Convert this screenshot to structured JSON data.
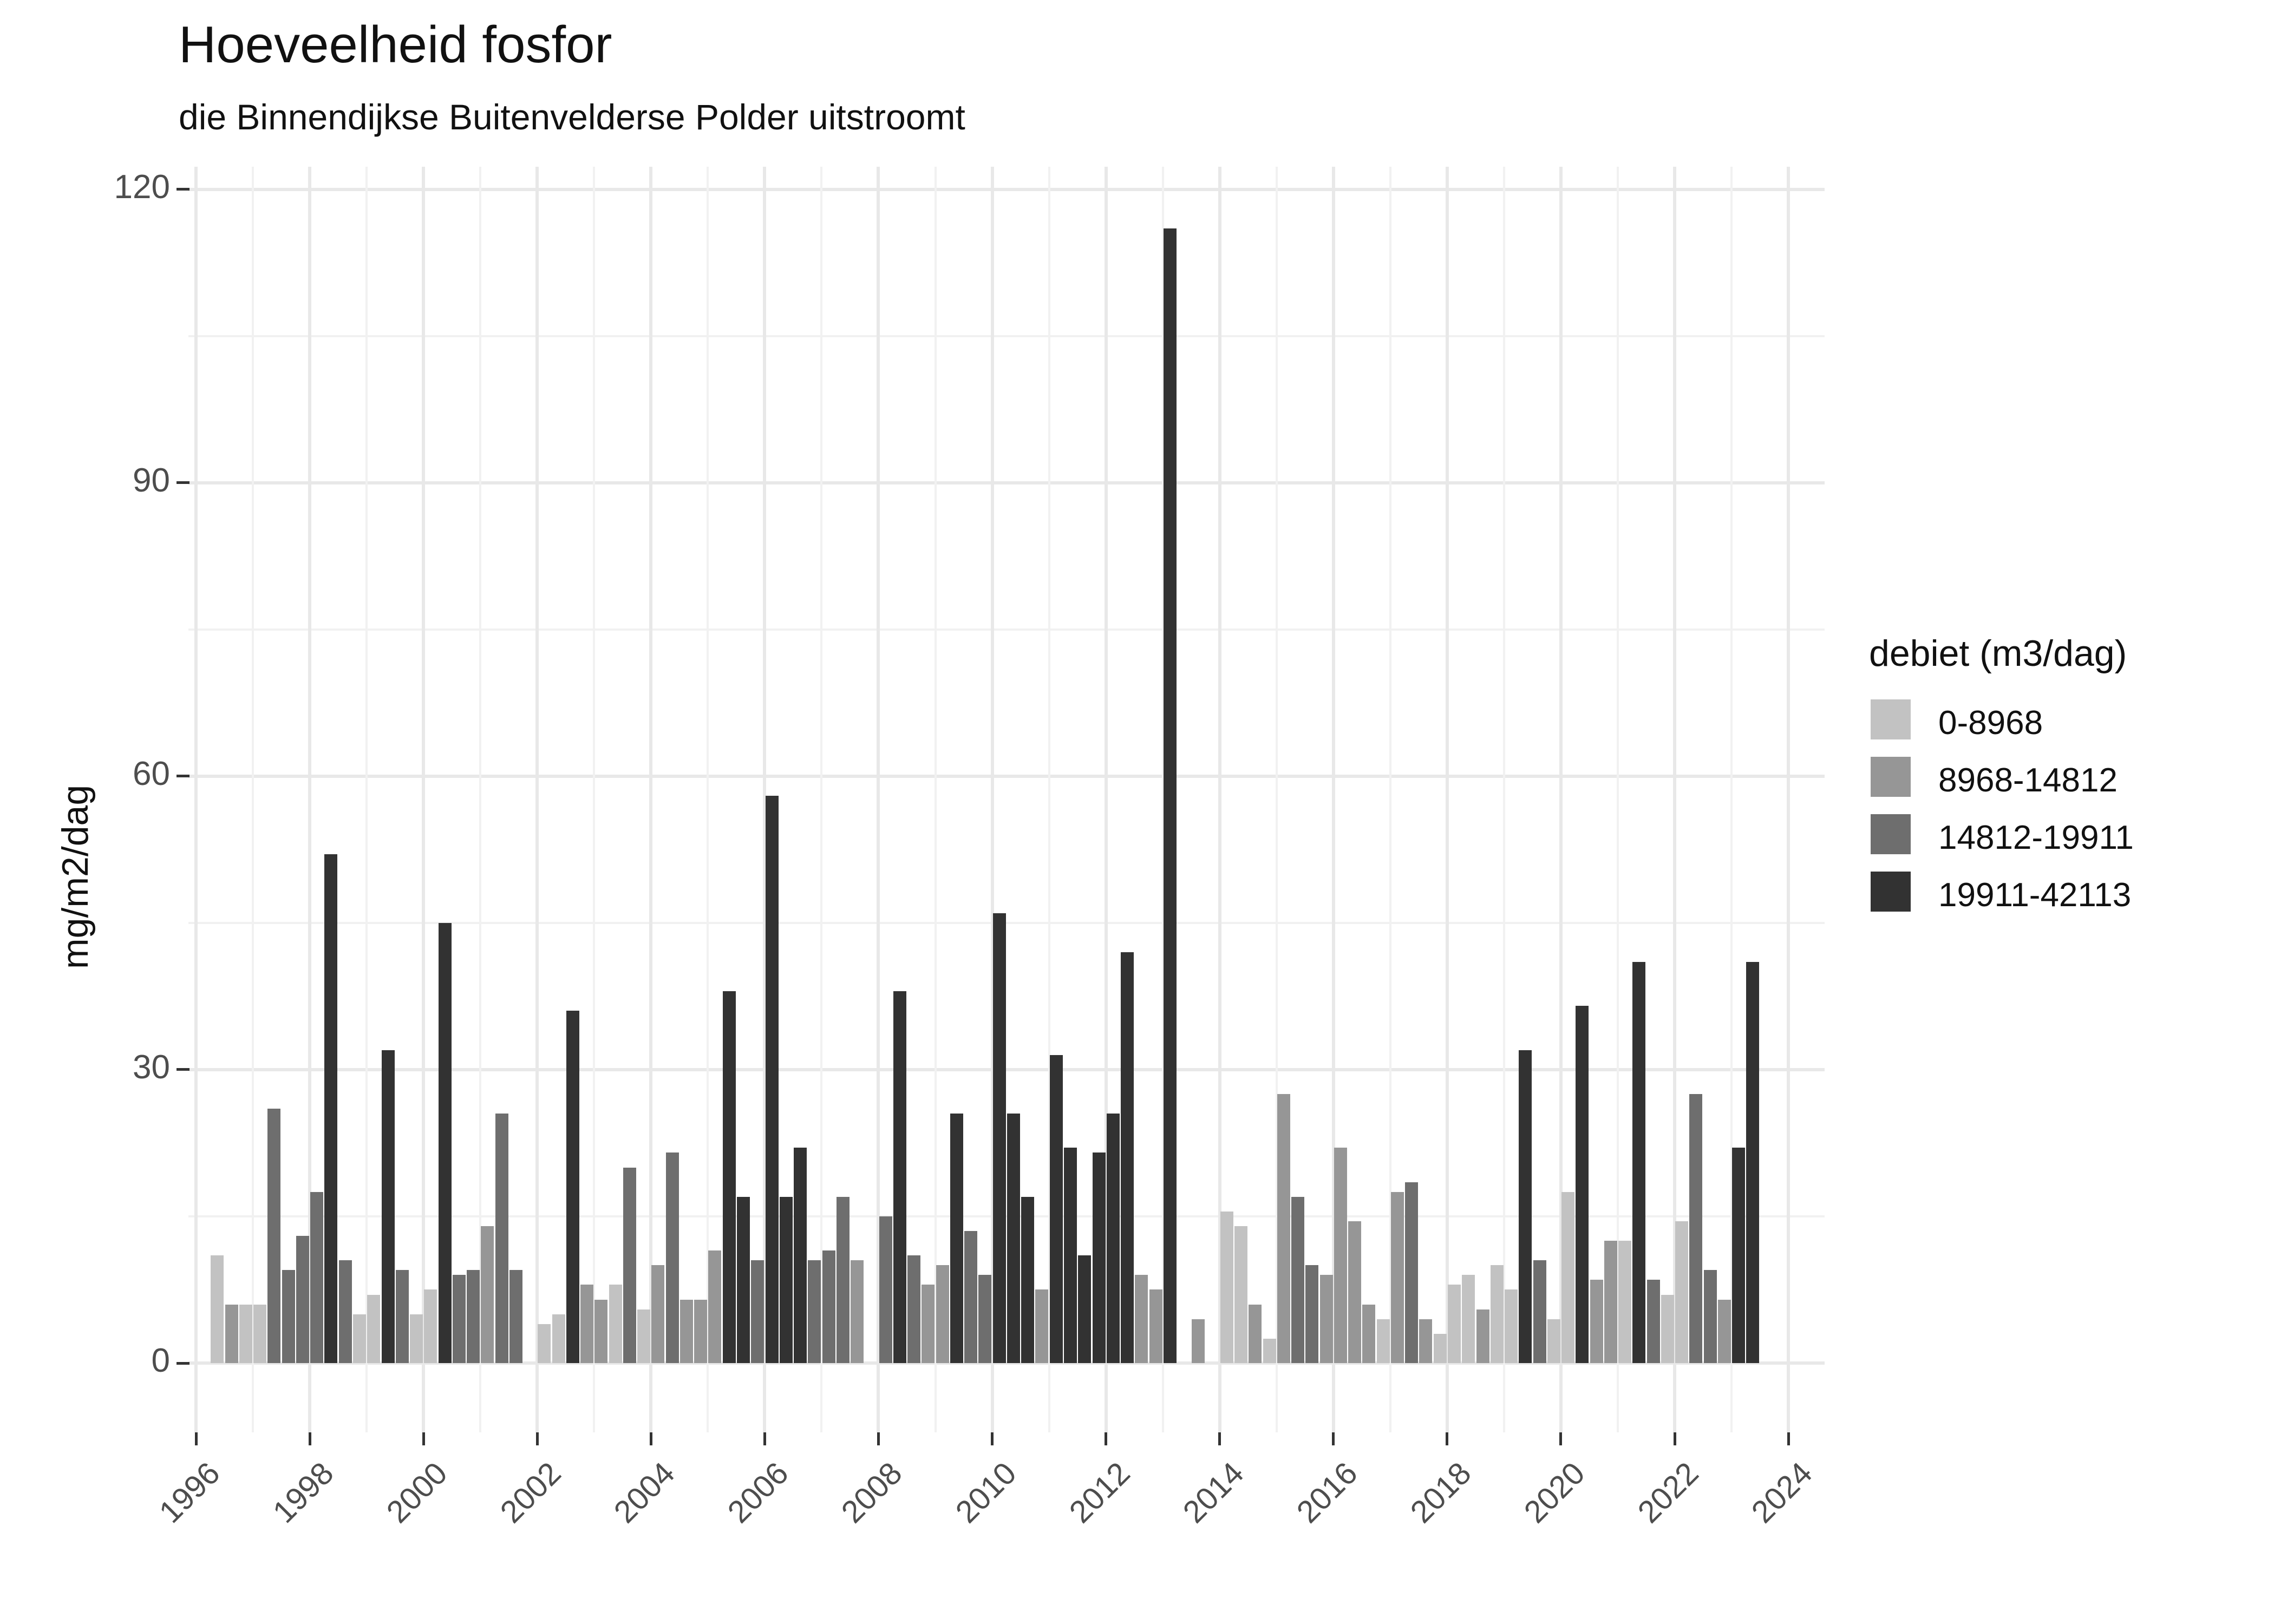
{
  "title": "Hoeveelheid fosfor",
  "subtitle": "die Binnendijkse Buitenvelderse Polder uitstroomt",
  "y_axis": {
    "label": "mg/m2/dag",
    "ticks": [
      0,
      30,
      60,
      90,
      120
    ]
  },
  "x_axis": {
    "ticks": [
      1996,
      1998,
      2000,
      2002,
      2004,
      2006,
      2008,
      2010,
      2012,
      2014,
      2016,
      2018,
      2020,
      2022,
      2024
    ]
  },
  "legend": {
    "title": "debiet (m3/dag)",
    "entries": [
      {
        "label": "0-8968",
        "color": "#c2c2c2"
      },
      {
        "label": "8968-14812",
        "color": "#969696"
      },
      {
        "label": "14812-19911",
        "color": "#6e6e6e"
      },
      {
        "label": "19911-42113",
        "color": "#323232"
      }
    ]
  },
  "chart_data": {
    "type": "bar",
    "title": "Hoeveelheid fosfor",
    "subtitle": "die Binnendijkse Buitenvelderse Polder uitstroomt",
    "ylabel": "mg/m2/dag",
    "ylim": [
      0,
      120
    ],
    "y_major_step": 30,
    "y_minor_step": 15,
    "x_range_years": [
      1996,
      2024
    ],
    "legend_title": "debiet (m3/dag)",
    "categories": [
      "0-8968",
      "8968-14812",
      "14812-19911",
      "19911-42113"
    ],
    "palette": [
      "#c2c2c2",
      "#969696",
      "#6e6e6e",
      "#323232"
    ],
    "bar_unit": "mg/m2/dag per quarter; bars = [year, quarter, value, debiet-category-index]",
    "bars": [
      [
        1996,
        2,
        11,
        0
      ],
      [
        1996,
        3,
        6,
        1
      ],
      [
        1996,
        4,
        6,
        0
      ],
      [
        1997,
        1,
        6,
        0
      ],
      [
        1997,
        2,
        26,
        2
      ],
      [
        1997,
        3,
        9.5,
        2
      ],
      [
        1997,
        4,
        13,
        2
      ],
      [
        1998,
        1,
        17.5,
        2
      ],
      [
        1998,
        2,
        52,
        3
      ],
      [
        1998,
        3,
        10.5,
        2
      ],
      [
        1998,
        4,
        5,
        0
      ],
      [
        1999,
        1,
        7,
        0
      ],
      [
        1999,
        2,
        32,
        3
      ],
      [
        1999,
        3,
        9.5,
        2
      ],
      [
        1999,
        4,
        5,
        0
      ],
      [
        2000,
        1,
        7.5,
        0
      ],
      [
        2000,
        2,
        45,
        3
      ],
      [
        2000,
        3,
        9,
        2
      ],
      [
        2000,
        4,
        9.5,
        2
      ],
      [
        2001,
        1,
        14,
        1
      ],
      [
        2001,
        2,
        25.5,
        2
      ],
      [
        2001,
        3,
        9.5,
        2
      ],
      [
        2002,
        1,
        4,
        0
      ],
      [
        2002,
        2,
        5,
        0
      ],
      [
        2002,
        3,
        36,
        3
      ],
      [
        2002,
        4,
        8,
        1
      ],
      [
        2003,
        1,
        6.5,
        1
      ],
      [
        2003,
        2,
        8,
        0
      ],
      [
        2003,
        3,
        20,
        2
      ],
      [
        2003,
        4,
        5.5,
        0
      ],
      [
        2004,
        1,
        10,
        1
      ],
      [
        2004,
        2,
        21.5,
        2
      ],
      [
        2004,
        3,
        6.5,
        1
      ],
      [
        2004,
        4,
        6.5,
        1
      ],
      [
        2005,
        1,
        11.5,
        1
      ],
      [
        2005,
        2,
        38,
        3
      ],
      [
        2005,
        3,
        17,
        3
      ],
      [
        2005,
        4,
        10.5,
        2
      ],
      [
        2006,
        1,
        58,
        3
      ],
      [
        2006,
        2,
        17,
        3
      ],
      [
        2006,
        3,
        22,
        3
      ],
      [
        2006,
        4,
        10.5,
        2
      ],
      [
        2007,
        1,
        11.5,
        2
      ],
      [
        2007,
        2,
        17,
        2
      ],
      [
        2007,
        3,
        10.5,
        1
      ],
      [
        2008,
        1,
        15,
        2
      ],
      [
        2008,
        2,
        38,
        3
      ],
      [
        2008,
        3,
        11,
        2
      ],
      [
        2008,
        4,
        8,
        1
      ],
      [
        2009,
        1,
        10,
        1
      ],
      [
        2009,
        2,
        25.5,
        3
      ],
      [
        2009,
        3,
        13.5,
        2
      ],
      [
        2009,
        4,
        9,
        2
      ],
      [
        2010,
        1,
        46,
        3
      ],
      [
        2010,
        2,
        25.5,
        3
      ],
      [
        2010,
        3,
        17,
        3
      ],
      [
        2010,
        4,
        7.5,
        1
      ],
      [
        2011,
        1,
        31.5,
        3
      ],
      [
        2011,
        2,
        22,
        3
      ],
      [
        2011,
        3,
        11,
        3
      ],
      [
        2011,
        4,
        21.5,
        3
      ],
      [
        2012,
        1,
        25.5,
        3
      ],
      [
        2012,
        2,
        42,
        3
      ],
      [
        2012,
        3,
        9,
        1
      ],
      [
        2012,
        4,
        7.5,
        1
      ],
      [
        2013,
        1,
        116,
        3
      ],
      [
        2013,
        3,
        4.5,
        1
      ],
      [
        2014,
        1,
        15.5,
        0
      ],
      [
        2014,
        2,
        14,
        0
      ],
      [
        2014,
        3,
        6,
        1
      ],
      [
        2014,
        4,
        2.5,
        0
      ],
      [
        2015,
        1,
        27.5,
        1
      ],
      [
        2015,
        2,
        17,
        2
      ],
      [
        2015,
        3,
        10,
        2
      ],
      [
        2015,
        4,
        9,
        1
      ],
      [
        2016,
        1,
        22,
        1
      ],
      [
        2016,
        2,
        14.5,
        1
      ],
      [
        2016,
        3,
        6,
        1
      ],
      [
        2016,
        4,
        4.5,
        0
      ],
      [
        2017,
        1,
        17.5,
        1
      ],
      [
        2017,
        2,
        18.5,
        2
      ],
      [
        2017,
        3,
        4.5,
        1
      ],
      [
        2017,
        4,
        3,
        0
      ],
      [
        2018,
        1,
        8,
        0
      ],
      [
        2018,
        2,
        9,
        0
      ],
      [
        2018,
        3,
        5.5,
        1
      ],
      [
        2018,
        4,
        10,
        0
      ],
      [
        2019,
        1,
        7.5,
        0
      ],
      [
        2019,
        2,
        32,
        3
      ],
      [
        2019,
        3,
        10.5,
        2
      ],
      [
        2019,
        4,
        4.5,
        0
      ],
      [
        2020,
        1,
        17.5,
        0
      ],
      [
        2020,
        2,
        36.5,
        3
      ],
      [
        2020,
        3,
        8.5,
        1
      ],
      [
        2020,
        4,
        12.5,
        1
      ],
      [
        2021,
        1,
        12.5,
        0
      ],
      [
        2021,
        2,
        41,
        3
      ],
      [
        2021,
        3,
        8.5,
        2
      ],
      [
        2021,
        4,
        7,
        0
      ],
      [
        2022,
        1,
        14.5,
        0
      ],
      [
        2022,
        2,
        27.5,
        2
      ],
      [
        2022,
        3,
        9.5,
        2
      ],
      [
        2022,
        4,
        6.5,
        1
      ],
      [
        2023,
        1,
        22,
        3
      ],
      [
        2023,
        2,
        41,
        3
      ]
    ]
  }
}
